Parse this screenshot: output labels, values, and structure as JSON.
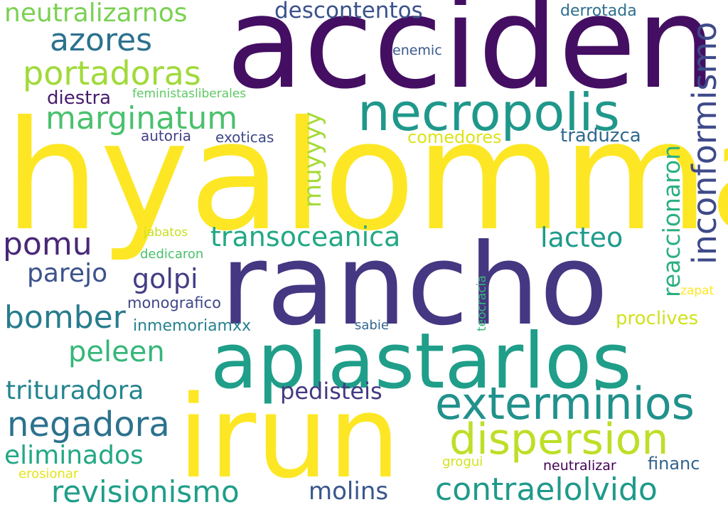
{
  "words": [
    {
      "text": "hyalomma",
      "color": "#fde725"
    },
    {
      "text": "acciden",
      "color": "#440f62"
    },
    {
      "text": "rancho",
      "color": "#453781"
    },
    {
      "text": "aplastarlos",
      "color": "#1f9e89"
    },
    {
      "text": "irun",
      "color": "#fde725"
    },
    {
      "text": "necropolis",
      "color": "#1f988b"
    },
    {
      "text": "exterminios",
      "color": "#21918c"
    },
    {
      "text": "dispersion",
      "color": "#bddf26"
    },
    {
      "text": "contraelolvido",
      "color": "#1f9a8a"
    },
    {
      "text": "revisionismo",
      "color": "#1f9e89"
    },
    {
      "text": "negadora",
      "color": "#2c728e"
    },
    {
      "text": "portadoras",
      "color": "#a0da39"
    },
    {
      "text": "marginatum",
      "color": "#4ac16d"
    },
    {
      "text": "azores",
      "color": "#2c728e"
    },
    {
      "text": "neutralizarnos",
      "color": "#7ad151"
    },
    {
      "text": "descontentos",
      "color": "#3b528b"
    },
    {
      "text": "transoceanica",
      "color": "#22a884"
    },
    {
      "text": "inconformismo",
      "color": "#3e4a89"
    },
    {
      "text": "reaccionaron",
      "color": "#2ab07f"
    },
    {
      "text": "muyyyy",
      "color": "#a5db36"
    },
    {
      "text": "pomu",
      "color": "#482878"
    },
    {
      "text": "bomber",
      "color": "#287c8e"
    },
    {
      "text": "lacteo",
      "color": "#1e9b8a"
    },
    {
      "text": "golpi",
      "color": "#433e85"
    },
    {
      "text": "parejo",
      "color": "#3b528b"
    },
    {
      "text": "peleen",
      "color": "#35b779"
    },
    {
      "text": "trituradora",
      "color": "#25848e"
    },
    {
      "text": "eliminados",
      "color": "#22a884"
    },
    {
      "text": "pedisteis",
      "color": "#443983"
    },
    {
      "text": "molins",
      "color": "#39568c"
    },
    {
      "text": "diestra",
      "color": "#481b6d"
    },
    {
      "text": "feministasliberales",
      "color": "#5ec962"
    },
    {
      "text": "enemic",
      "color": "#38598c"
    },
    {
      "text": "derrotada",
      "color": "#2e6e8e"
    },
    {
      "text": "autoria",
      "color": "#424086"
    },
    {
      "text": "exoticas",
      "color": "#3e4a89"
    },
    {
      "text": "comedores",
      "color": "#dde318"
    },
    {
      "text": "traduzca",
      "color": "#30688e"
    },
    {
      "text": "jabatos",
      "color": "#c8e020"
    },
    {
      "text": "dedicaron",
      "color": "#4ac16d"
    },
    {
      "text": "monografico",
      "color": "#3f4788"
    },
    {
      "text": "inmemoriamxx",
      "color": "#26828e"
    },
    {
      "text": "teocracia",
      "color": "#35b779"
    },
    {
      "text": "sabie",
      "color": "#31688e"
    },
    {
      "text": "proclives",
      "color": "#d0e11c"
    },
    {
      "text": "zapat",
      "color": "#fde725"
    },
    {
      "text": "grogui",
      "color": "#d2e21b"
    },
    {
      "text": "neutralizar",
      "color": "#440154"
    },
    {
      "text": "financ",
      "color": "#33638d"
    },
    {
      "text": "erosionar",
      "color": "#e5e419"
    }
  ]
}
